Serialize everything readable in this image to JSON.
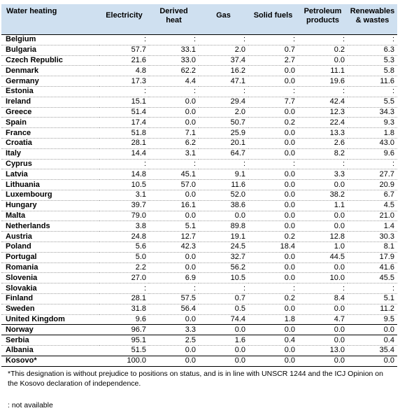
{
  "table": {
    "headers": [
      "Water heating",
      "Electricity",
      "Derived heat",
      "Gas",
      "Solid fuels",
      "Petroleum products",
      "Renewables & wastes"
    ],
    "rows": [
      [
        "Belgium",
        ":",
        ":",
        ":",
        ":",
        ":",
        ":"
      ],
      [
        "Bulgaria",
        "57.7",
        "33.1",
        "2.0",
        "0.7",
        "0.2",
        "6.3"
      ],
      [
        "Czech Republic",
        "21.6",
        "33.0",
        "37.4",
        "2.7",
        "0.0",
        "5.3"
      ],
      [
        "Denmark",
        "4.8",
        "62.2",
        "16.2",
        "0.0",
        "11.1",
        "5.8"
      ],
      [
        "Germany",
        "17.3",
        "4.4",
        "47.1",
        "0.0",
        "19.6",
        "11.6"
      ],
      [
        "Estonia",
        ":",
        ":",
        ":",
        ":",
        ":",
        ":"
      ],
      [
        "Ireland",
        "15.1",
        "0.0",
        "29.4",
        "7.7",
        "42.4",
        "5.5"
      ],
      [
        "Greece",
        "51.4",
        "0.0",
        "2.0",
        "0.0",
        "12.3",
        "34.3"
      ],
      [
        "Spain",
        "17.4",
        "0.0",
        "50.7",
        "0.2",
        "22.4",
        "9.3"
      ],
      [
        "France",
        "51.8",
        "7.1",
        "25.9",
        "0.0",
        "13.3",
        "1.8"
      ],
      [
        "Croatia",
        "28.1",
        "6.2",
        "20.1",
        "0.0",
        "2.6",
        "43.0"
      ],
      [
        "Italy",
        "14.4",
        "3.1",
        "64.7",
        "0.0",
        "8.2",
        "9.6"
      ],
      [
        "Cyprus",
        ":",
        ":",
        ":",
        ":",
        ":",
        ":"
      ],
      [
        "Latvia",
        "14.8",
        "45.1",
        "9.1",
        "0.0",
        "3.3",
        "27.7"
      ],
      [
        "Lithuania",
        "10.5",
        "57.0",
        "11.6",
        "0.0",
        "0.0",
        "20.9"
      ],
      [
        "Luxembourg",
        "3.1",
        "0.0",
        "52.0",
        "0.0",
        "38.2",
        "6.7"
      ],
      [
        "Hungary",
        "39.7",
        "16.1",
        "38.6",
        "0.0",
        "1.1",
        "4.5"
      ],
      [
        "Malta",
        "79.0",
        "0.0",
        "0.0",
        "0.0",
        "0.0",
        "21.0"
      ],
      [
        "Netherlands",
        "3.8",
        "5.1",
        "89.8",
        "0.0",
        "0.0",
        "1.4"
      ],
      [
        "Austria",
        "24.8",
        "12.7",
        "19.1",
        "0.2",
        "12.8",
        "30.3"
      ],
      [
        "Poland",
        "5.6",
        "42.3",
        "24.5",
        "18.4",
        "1.0",
        "8.1"
      ],
      [
        "Portugal",
        "5.0",
        "0.0",
        "32.7",
        "0.0",
        "44.5",
        "17.9"
      ],
      [
        "Romania",
        "2.2",
        "0.0",
        "56.2",
        "0.0",
        "0.0",
        "41.6"
      ],
      [
        "Slovenia",
        "27.0",
        "6.9",
        "10.5",
        "0.0",
        "10.0",
        "45.5"
      ],
      [
        "Slovakia",
        ":",
        ":",
        ":",
        ":",
        ":",
        ":"
      ],
      [
        "Finland",
        "28.1",
        "57.5",
        "0.7",
        "0.2",
        "8.4",
        "5.1"
      ],
      [
        "Sweden",
        "31.8",
        "56.4",
        "0.5",
        "0.0",
        "0.0",
        "11.2"
      ],
      [
        "United Kingdom",
        "9.6",
        "0.0",
        "74.4",
        "1.8",
        "4.7",
        "9.5"
      ],
      [
        "Norway",
        "96.7",
        "3.3",
        "0.0",
        "0.0",
        "0.0",
        "0.0"
      ],
      [
        "Serbia",
        "95.1",
        "2.5",
        "1.6",
        "0.4",
        "0.0",
        "0.4"
      ],
      [
        "Albania",
        "51.5",
        "0.0",
        "0.0",
        "0.0",
        "13.0",
        "35.4"
      ],
      [
        "Kosovo*",
        "100.0",
        "0.0",
        "0.0",
        "0.0",
        "0.0",
        "0.0"
      ]
    ]
  },
  "footnote": "*This designation is without prejudice to positions on status, and is in line with UNSCR 1244 and the ICJ Opinion on the Kosovo declaration of independence.",
  "legend": ": not available",
  "colors": {
    "header_bg": "#cfe0f0"
  }
}
